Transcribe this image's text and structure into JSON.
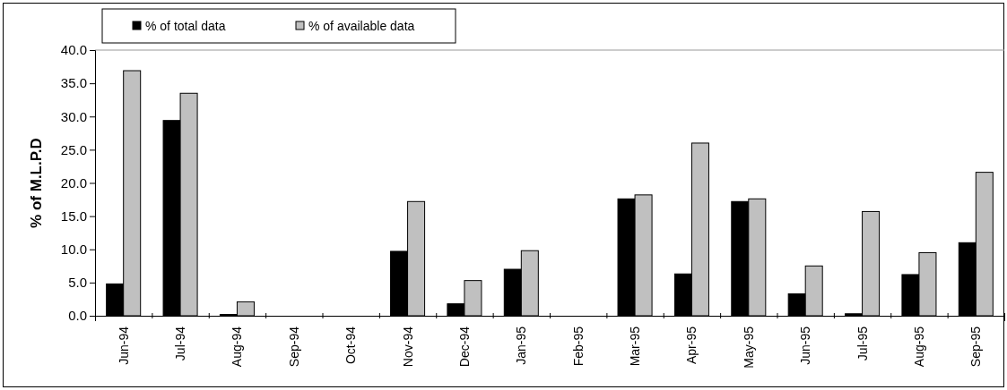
{
  "chart_data": {
    "type": "bar",
    "ylabel": "% of M.L.P.D",
    "categories": [
      "Jun-94",
      "Jul-94",
      "Aug-94",
      "Sep-94",
      "Oct-94",
      "Nov-94",
      "Dec-94",
      "Jan-95",
      "Feb-95",
      "Mar-95",
      "Apr-95",
      "May-95",
      "Jun-95",
      "Jul-95",
      "Aug-95",
      "Sep-95"
    ],
    "series": [
      {
        "name": "% of total data",
        "color": "#000000",
        "values": [
          4.8,
          29.4,
          0.2,
          0,
          0,
          9.7,
          1.8,
          7.0,
          0,
          17.6,
          6.3,
          17.2,
          3.3,
          0.3,
          6.2,
          11.0
        ]
      },
      {
        "name": "% of available data",
        "color": "#c0c0c0",
        "values": [
          36.9,
          33.5,
          2.1,
          0,
          0,
          17.2,
          5.3,
          9.8,
          0,
          18.2,
          26.0,
          17.6,
          7.5,
          15.7,
          9.5,
          21.6
        ]
      }
    ],
    "ylim": [
      0,
      40
    ],
    "yticks": [
      {
        "value": 0,
        "label": "0.0"
      },
      {
        "value": 5,
        "label": "5.0"
      },
      {
        "value": 10,
        "label": "10.0"
      },
      {
        "value": 15,
        "label": "15.0"
      },
      {
        "value": 20,
        "label": "20.0"
      },
      {
        "value": 25,
        "label": "25.0"
      },
      {
        "value": 30,
        "label": "30.0"
      },
      {
        "value": 35,
        "label": "35.0"
      },
      {
        "value": 40,
        "label": "40.0"
      }
    ],
    "grid": false,
    "legend": "top"
  }
}
